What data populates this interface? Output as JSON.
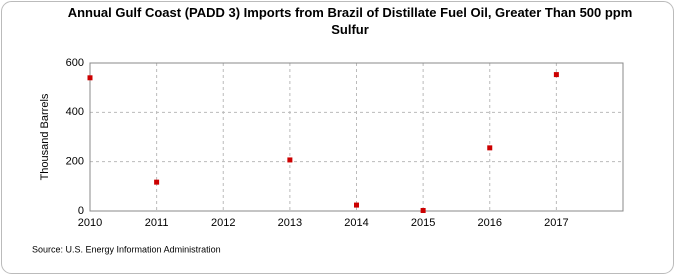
{
  "chart_data": {
    "type": "scatter",
    "title": "Annual Gulf Coast (PADD 3) Imports from Brazil of Distillate Fuel Oil, Greater Than 500 ppm Sulfur",
    "y_label": "Thousand Barrels",
    "source": "Source: U.S. Energy Information Administration",
    "x": [
      2010,
      2011,
      2013,
      2014,
      2015,
      2016,
      2017
    ],
    "values": [
      540,
      117,
      207,
      24,
      2,
      256,
      553
    ],
    "color": "#cc0000",
    "xlim": [
      2010,
      2018
    ],
    "xticks": [
      2010,
      2011,
      2012,
      2013,
      2014,
      2015,
      2016,
      2017
    ],
    "ylim": [
      0,
      600
    ],
    "yticks": [
      0,
      200,
      400,
      600
    ],
    "grid": true
  }
}
